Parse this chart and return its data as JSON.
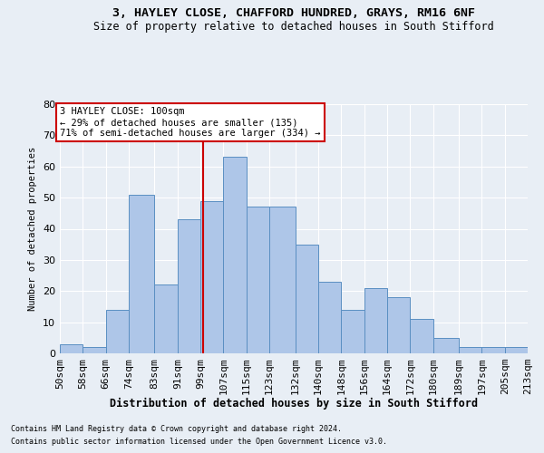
{
  "title1": "3, HAYLEY CLOSE, CHAFFORD HUNDRED, GRAYS, RM16 6NF",
  "title2": "Size of property relative to detached houses in South Stifford",
  "xlabel": "Distribution of detached houses by size in South Stifford",
  "ylabel": "Number of detached properties",
  "footer1": "Contains HM Land Registry data © Crown copyright and database right 2024.",
  "footer2": "Contains public sector information licensed under the Open Government Licence v3.0.",
  "bin_labels": [
    "50sqm",
    "58sqm",
    "66sqm",
    "74sqm",
    "83sqm",
    "91sqm",
    "99sqm",
    "107sqm",
    "115sqm",
    "123sqm",
    "132sqm",
    "140sqm",
    "148sqm",
    "156sqm",
    "164sqm",
    "172sqm",
    "180sqm",
    "189sqm",
    "197sqm",
    "205sqm",
    "213sqm"
  ],
  "bin_edges": [
    50,
    58,
    66,
    74,
    83,
    91,
    99,
    107,
    115,
    123,
    132,
    140,
    148,
    156,
    164,
    172,
    180,
    189,
    197,
    205,
    213
  ],
  "bar_heights": [
    3,
    2,
    14,
    51,
    22,
    43,
    49,
    63,
    47,
    47,
    35,
    23,
    14,
    21,
    18,
    11,
    5,
    2,
    2,
    2
  ],
  "bar_color": "#aec6e8",
  "bar_edge_color": "#5a8fc2",
  "property_value": 100,
  "red_line_color": "#cc0000",
  "annotation_text": "3 HAYLEY CLOSE: 100sqm\n← 29% of detached houses are smaller (135)\n71% of semi-detached houses are larger (334) →",
  "annotation_box_color": "#ffffff",
  "annotation_box_edge": "#cc0000",
  "ylim": [
    0,
    80
  ],
  "background_color": "#e8eef5",
  "grid_color": "#ffffff"
}
